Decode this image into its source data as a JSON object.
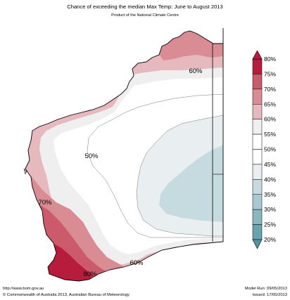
{
  "header": {
    "title": "Chance of exceeding the median Max Temp: June to August 2013",
    "subtitle": "Product of the National Climate Centre"
  },
  "map": {
    "region": "Western Australia",
    "labels": {
      "north_60": "60%",
      "mid_50": "50%",
      "west_70": "70%",
      "south_60": "60%",
      "south_80": "80%"
    },
    "colors": {
      "p80": "#b81c3c",
      "p75": "#cb5a6b",
      "p70": "#d98c94",
      "p65": "#e5b9bd",
      "p60": "#f0efef",
      "p50": "#ffffff",
      "p45": "#e9eff1",
      "p40": "#c6dbdf",
      "p35": "#a9c9d0",
      "p30": "#8ab6c0",
      "p25": "#6aa3b0",
      "p20": "#5293a1"
    }
  },
  "legend": {
    "ticks": [
      "80%",
      "75%",
      "70%",
      "65%",
      "60%",
      "55%",
      "50%",
      "45%",
      "40%",
      "35%",
      "30%",
      "25%",
      "20%"
    ]
  },
  "footer": {
    "url": "http://www.bom.gov.au",
    "copyright": "©  Commonwealth of Australia 2013, Australian Bureau of Meteorology",
    "model_run": "Model Run: 09/05/2013",
    "issued": "Issued: 17/05/2013"
  }
}
